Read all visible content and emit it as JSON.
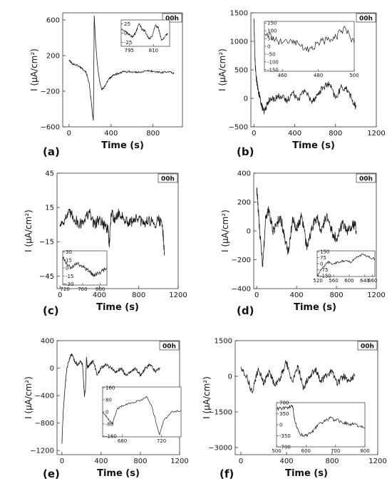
{
  "chart_data": [
    {
      "type": "line",
      "panel_label": "(a)",
      "tag": "00h",
      "xlabel": "Time (s)",
      "ylabel": "I (μA/cm²)",
      "xlim": [
        -60,
        1080
      ],
      "ylim": [
        -600,
        680
      ],
      "xticks": [
        0,
        400,
        800
      ],
      "yticks": [
        600,
        200,
        -200,
        -600
      ],
      "yticks_text": [
        "600",
        "200",
        "−200",
        "−600"
      ],
      "series": [
        {
          "x": [
            0,
            30,
            80,
            120,
            160,
            190,
            210,
            225,
            232,
            240,
            250,
            270,
            290,
            310,
            340,
            380,
            420,
            470,
            520,
            580,
            640,
            700,
            760,
            820,
            880,
            940,
            1000
          ],
          "y": [
            150,
            110,
            90,
            60,
            20,
            -100,
            -300,
            -480,
            -520,
            650,
            400,
            100,
            -80,
            -180,
            -150,
            -60,
            -20,
            0,
            20,
            20,
            10,
            20,
            30,
            20,
            10,
            20,
            0
          ],
          "noise": 10
        }
      ],
      "inset": {
        "xlim": [
          790,
          820
        ],
        "ylim": [
          -35,
          35
        ],
        "xticks": [
          795,
          810
        ],
        "yticks": [
          25,
          0,
          -25
        ],
        "x": [
          790,
          793,
          795,
          797,
          799,
          801,
          803,
          805,
          807,
          809,
          811,
          813,
          815,
          817,
          819
        ],
        "y": [
          10,
          5,
          -5,
          -10,
          0,
          25,
          10,
          5,
          -15,
          -10,
          20,
          15,
          -20,
          -10,
          0
        ],
        "noise": 3
      }
    },
    {
      "type": "line",
      "panel_label": "(b)",
      "tag": "00h",
      "xlabel": "Time (s)",
      "ylabel": "I (μA/cm²)",
      "xlim": [
        -30,
        1200
      ],
      "ylim": [
        -500,
        1500
      ],
      "xticks": [
        0,
        400,
        800,
        1200
      ],
      "yticks": [
        1500,
        1000,
        500,
        0,
        -500
      ],
      "yticks_text": [
        "1500",
        "1000",
        "500",
        "0",
        "−500"
      ],
      "series": [
        {
          "x": [
            0,
            10,
            20,
            40,
            60,
            80,
            100,
            140,
            200,
            260,
            320,
            380,
            440,
            500,
            560,
            620,
            680,
            740,
            800,
            860,
            920,
            980,
            1000
          ],
          "y": [
            1400,
            700,
            400,
            150,
            0,
            -150,
            -250,
            -50,
            0,
            50,
            -50,
            100,
            0,
            150,
            -50,
            50,
            200,
            250,
            0,
            200,
            150,
            -100,
            -150
          ],
          "noise": 60
        }
      ],
      "inset": {
        "xlim": [
          450,
          500
        ],
        "ylim": [
          -160,
          160
        ],
        "xticks": [
          460,
          480,
          500
        ],
        "yticks": [
          150,
          100,
          50,
          0,
          -50,
          -100,
          -150
        ],
        "x": [
          450,
          455,
          460,
          465,
          470,
          475,
          480,
          485,
          490,
          495,
          500
        ],
        "y": [
          80,
          60,
          20,
          40,
          0,
          -20,
          20,
          40,
          60,
          120,
          20
        ],
        "noise": 25
      }
    },
    {
      "type": "line",
      "panel_label": "(c)",
      "tag": "00h",
      "xlabel": "Time (s)",
      "ylabel": "I (μA/cm²)",
      "xlim": [
        -30,
        1200
      ],
      "ylim": [
        -56,
        45
      ],
      "xticks": [
        0,
        400,
        800,
        1200
      ],
      "yticks": [
        45,
        15,
        -15,
        -45
      ],
      "yticks_text": [
        "45",
        "15",
        "−15",
        "−45"
      ],
      "series": [
        {
          "x": [
            0,
            50,
            100,
            150,
            200,
            250,
            300,
            350,
            400,
            450,
            490,
            500,
            520,
            560,
            600,
            650,
            700,
            750,
            800,
            850,
            900,
            950,
            1000,
            1040,
            1060
          ],
          "y": [
            0,
            5,
            10,
            5,
            0,
            5,
            10,
            0,
            5,
            0,
            -5,
            -20,
            10,
            5,
            10,
            5,
            0,
            5,
            5,
            0,
            5,
            0,
            5,
            0,
            -25
          ],
          "noise": 5
        }
      ],
      "inset": {
        "xlim": [
          715,
          815
        ],
        "ylim": [
          -32,
          32
        ],
        "xticks": [
          720,
          760,
          800
        ],
        "yticks": [
          30,
          15,
          0,
          -15,
          -30
        ],
        "x": [
          715,
          725,
          735,
          745,
          755,
          765,
          775,
          785,
          795,
          805,
          815
        ],
        "y": [
          20,
          5,
          0,
          10,
          5,
          0,
          -5,
          -15,
          -10,
          -5,
          0
        ],
        "noise": 4
      }
    },
    {
      "type": "line",
      "panel_label": "(d)",
      "tag": "00h",
      "xlabel": "Time (s)",
      "ylabel": "I (μA/cm²)",
      "xlim": [
        -30,
        1200
      ],
      "ylim": [
        -400,
        400
      ],
      "xticks": [
        0,
        400,
        800,
        1200
      ],
      "yticks": [
        400,
        200,
        0,
        -200,
        -400
      ],
      "yticks_text": [
        "400",
        "200",
        "0",
        "−200",
        "−400"
      ],
      "series": [
        {
          "x": [
            0,
            15,
            30,
            60,
            90,
            120,
            160,
            200,
            240,
            280,
            320,
            360,
            400,
            450,
            500,
            550,
            600,
            650,
            700,
            750,
            800,
            860,
            920,
            980,
            1000
          ],
          "y": [
            300,
            150,
            0,
            -250,
            100,
            150,
            0,
            50,
            100,
            -50,
            -150,
            100,
            0,
            100,
            -100,
            0,
            100,
            0,
            100,
            0,
            -50,
            50,
            0,
            50,
            0
          ],
          "noise": 40
        }
      ],
      "inset": {
        "xlim": [
          518,
          666
        ],
        "ylim": [
          -160,
          160
        ],
        "xticks": [
          520,
          560,
          600,
          640,
          660
        ],
        "yticks": [
          150,
          75,
          0,
          -75,
          -150
        ],
        "x": [
          518,
          530,
          545,
          560,
          575,
          590,
          605,
          620,
          635,
          650,
          666
        ],
        "y": [
          -150,
          -60,
          20,
          0,
          20,
          40,
          20,
          80,
          120,
          80,
          60
        ],
        "noise": 15
      }
    },
    {
      "type": "line",
      "panel_label": "(e)",
      "tag": "00h",
      "xlabel": "Time (s)",
      "ylabel": "I (μA/cm²)",
      "xlim": [
        -50,
        1200
      ],
      "ylim": [
        -1260,
        400
      ],
      "xticks": [
        0,
        400,
        800,
        1200
      ],
      "yticks": [
        400,
        0,
        -400,
        -800,
        -1200
      ],
      "yticks_text": [
        "400",
        "0",
        "−400",
        "−800",
        "−1200"
      ],
      "series": [
        {
          "x": [
            0,
            5,
            15,
            30,
            50,
            80,
            100,
            130,
            160,
            190,
            210,
            230,
            240,
            250,
            260,
            280,
            320,
            360,
            400,
            450,
            500,
            550,
            600,
            650,
            700,
            750,
            800,
            850,
            900,
            950,
            1000
          ],
          "y": [
            -1100,
            -900,
            -600,
            -300,
            0,
            150,
            200,
            100,
            50,
            100,
            50,
            -400,
            -300,
            150,
            0,
            50,
            100,
            -100,
            0,
            50,
            0,
            -50,
            0,
            -100,
            -50,
            0,
            -100,
            0,
            50,
            -50,
            0
          ],
          "noise": 25
        }
      ],
      "inset": {
        "xlim": [
          660,
          740
        ],
        "ylim": [
          -165,
          165
        ],
        "xticks": [
          680,
          720
        ],
        "yticks": [
          160,
          80,
          0,
          -80,
          -160
        ],
        "x": [
          660,
          665,
          670,
          675,
          680,
          690,
          700,
          705,
          710,
          715,
          718,
          722,
          730,
          740
        ],
        "y": [
          0,
          -40,
          -80,
          20,
          40,
          60,
          80,
          100,
          40,
          -80,
          -150,
          -60,
          0,
          10
        ],
        "noise": 6
      }
    },
    {
      "type": "line",
      "panel_label": "(f)",
      "tag": "00h",
      "xlabel": "Time (s)",
      "ylabel": "I (μA/cm²)",
      "xlim": [
        -50,
        1200
      ],
      "ylim": [
        -3300,
        1500
      ],
      "xticks": [
        0,
        400,
        800,
        1200
      ],
      "yticks": [
        1500,
        0,
        -1500,
        -3000
      ],
      "yticks_text": [
        "1500",
        "0",
        "−1500",
        "−3000"
      ],
      "series": [
        {
          "x": [
            0,
            50,
            100,
            150,
            200,
            250,
            300,
            350,
            400,
            450,
            500,
            550,
            600,
            650,
            700,
            750,
            800,
            850,
            900,
            950,
            1000
          ],
          "y": [
            400,
            0,
            -700,
            300,
            -300,
            200,
            -400,
            0,
            600,
            -200,
            400,
            -500,
            0,
            300,
            -200,
            0,
            200,
            -300,
            0,
            -200,
            0
          ],
          "noise": 150
        }
      ],
      "inset": {
        "xlim": [
          500,
          800
        ],
        "ylim": [
          -700,
          700
        ],
        "xticks": [
          500,
          600,
          700,
          800
        ],
        "yticks": [
          700,
          350,
          0,
          -350,
          -700
        ],
        "x": [
          500,
          520,
          540,
          555,
          560,
          570,
          580,
          600,
          620,
          640,
          660,
          680,
          700,
          720,
          740,
          760,
          780,
          800
        ],
        "y": [
          500,
          520,
          550,
          600,
          200,
          -100,
          -300,
          -350,
          -250,
          0,
          100,
          200,
          150,
          100,
          50,
          0,
          -50,
          -100
        ],
        "noise": 60
      }
    }
  ]
}
